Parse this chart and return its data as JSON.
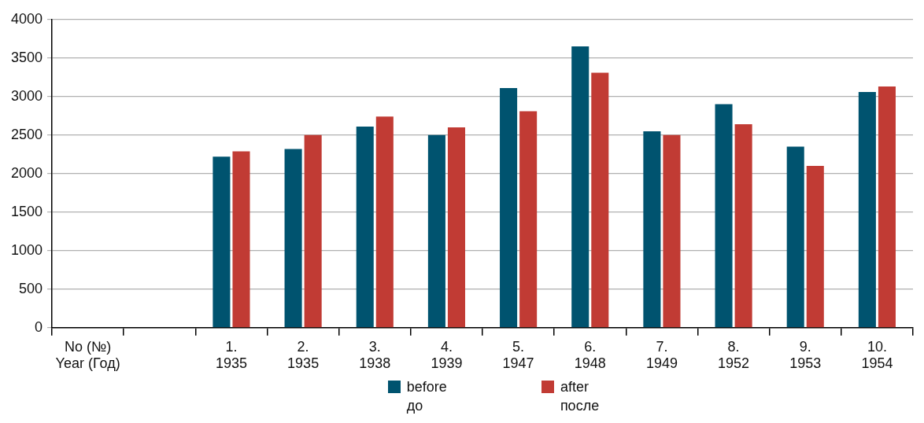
{
  "chart_data": {
    "type": "bar",
    "categories": [
      "No (№)\nYear (Год)",
      null,
      "1.\n1935",
      "2.\n1935",
      "3.\n1938",
      "4.\n1939",
      "5.\n1947",
      "6.\n1948",
      "7.\n1949",
      "8.\n1952",
      "9.\n1953",
      "10.\n1954"
    ],
    "series": [
      {
        "name": "before\nдо",
        "color": "#00536f",
        "values": [
          null,
          null,
          2220,
          2320,
          2610,
          2500,
          3110,
          3650,
          2550,
          2900,
          2350,
          3060
        ]
      },
      {
        "name": "after\nпосле",
        "color": "#c13b34",
        "values": [
          null,
          null,
          2290,
          2500,
          2740,
          2600,
          2810,
          3310,
          2500,
          2640,
          2100,
          3130
        ]
      }
    ],
    "ylim": [
      0,
      4000
    ],
    "yticks": [
      0,
      500,
      1000,
      1500,
      2000,
      2500,
      3000,
      3500,
      4000
    ],
    "grid": "y",
    "legend": "bottom"
  }
}
